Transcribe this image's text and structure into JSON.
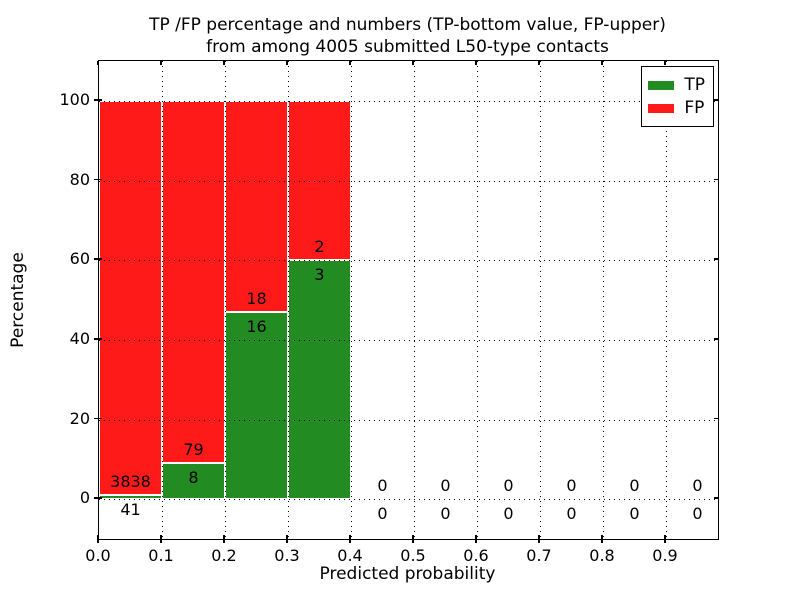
{
  "figure": {
    "title_line1": "TP /FP percentage and numbers (TP-bottom value, FP-upper)",
    "title_line2": "from among 4005 submitted L50-type contacts"
  },
  "chart_data": {
    "type": "bar",
    "stacked": true,
    "title": "TP /FP percentage and numbers (TP-bottom value, FP-upper)\nfrom among 4005 submitted L50-type contacts",
    "xlabel": "Predicted probability",
    "ylabel": "Percentage",
    "xlim": [
      0.0,
      1.0
    ],
    "ylim": [
      -10,
      110
    ],
    "x_ticks": [
      "0.0",
      "0.1",
      "0.2",
      "0.3",
      "0.4",
      "0.5",
      "0.6",
      "0.7",
      "0.8",
      "0.9"
    ],
    "y_ticks": [
      0,
      20,
      40,
      60,
      80,
      100
    ],
    "grid": true,
    "grid_style": "dotted",
    "legend_position": "upper right",
    "categories": [
      "0.0-0.1",
      "0.1-0.2",
      "0.2-0.3",
      "0.3-0.4",
      "0.4-0.5",
      "0.5-0.6",
      "0.6-0.7",
      "0.7-0.8",
      "0.8-0.9",
      "0.9-1.0"
    ],
    "series": [
      {
        "name": "TP",
        "color": "#228B22",
        "counts": [
          41,
          8,
          16,
          3,
          0,
          0,
          0,
          0,
          0,
          0
        ],
        "percentages": [
          1.06,
          9.2,
          47.06,
          60.0,
          0,
          0,
          0,
          0,
          0,
          0
        ]
      },
      {
        "name": "FP",
        "color": "#FF1A1A",
        "counts": [
          3838,
          79,
          18,
          2,
          0,
          0,
          0,
          0,
          0,
          0
        ],
        "percentages": [
          98.94,
          90.8,
          52.94,
          40.0,
          0,
          0,
          0,
          0,
          0,
          0
        ]
      }
    ]
  }
}
